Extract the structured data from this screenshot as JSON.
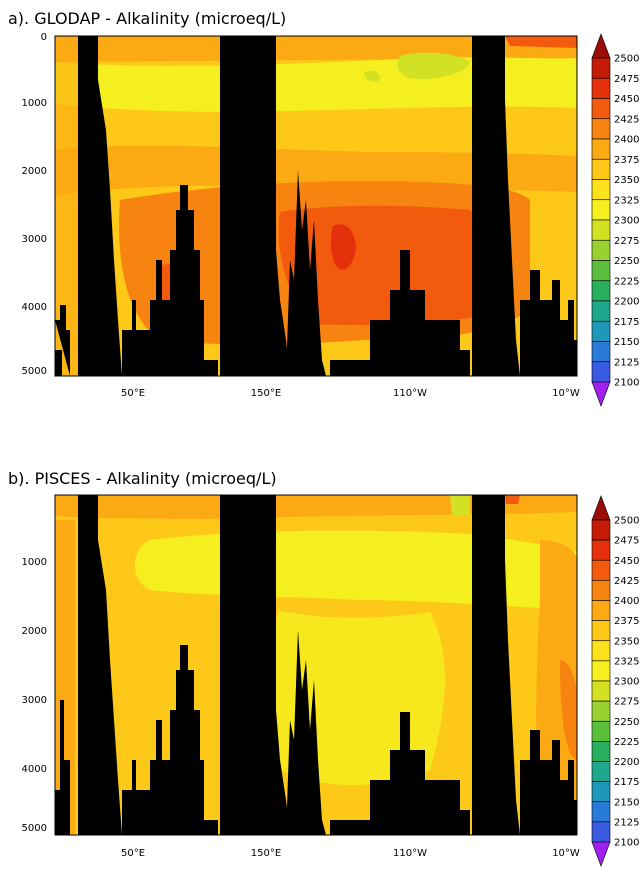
{
  "palette": [
    "#a020f0",
    "#6a3ff0",
    "#3a5be0",
    "#2a7ad8",
    "#1f97b8",
    "#1fa88e",
    "#28b05e",
    "#5bbf3c",
    "#98d130",
    "#d2e124",
    "#f5ef1f",
    "#fce21a",
    "#fdc817",
    "#fbaa14",
    "#f78411",
    "#f25a0e",
    "#e5310b",
    "#c41a08",
    "#9a0d06"
  ],
  "chart_data": [
    {
      "type": "heatmap",
      "title": "a). GLODAP - Alkalinity (microeq/L)",
      "xlabel": "",
      "ylabel": "",
      "x_ticks": [
        "50°E",
        "150°E",
        "110°W",
        "10°W"
      ],
      "y_ticks": [
        "0",
        "1000",
        "2000",
        "3000",
        "4000",
        "5000"
      ],
      "ylim": [
        5500,
        0
      ],
      "colorbar_levels": [
        2100,
        2125,
        2150,
        2175,
        2200,
        2225,
        2250,
        2275,
        2300,
        2325,
        2350,
        2375,
        2400,
        2425,
        2450,
        2475,
        2500
      ],
      "bands_by_depth": [
        {
          "depth_m": 0,
          "level": 2425
        },
        {
          "depth_m": 500,
          "level": 2375
        },
        {
          "depth_m": 1000,
          "level": 2400
        },
        {
          "depth_m": 1500,
          "level": 2425
        },
        {
          "depth_m": 2000,
          "level": 2450
        },
        {
          "depth_m": 3000,
          "level": 2450
        },
        {
          "depth_m": 4500,
          "level": 2425
        }
      ]
    },
    {
      "type": "heatmap",
      "title": "b). PISCES - Alkalinity (microeq/L)",
      "xlabel": "",
      "ylabel": "",
      "x_ticks": [
        "50°E",
        "150°E",
        "110°W",
        "10°W"
      ],
      "y_ticks": [
        "1000",
        "2000",
        "3000",
        "4000",
        "5000"
      ],
      "ylim": [
        5300,
        0
      ],
      "colorbar_levels": [
        2100,
        2125,
        2150,
        2175,
        2200,
        2225,
        2250,
        2275,
        2300,
        2325,
        2350,
        2375,
        2400,
        2425,
        2450,
        2475,
        2500
      ],
      "bands_by_depth": [
        {
          "depth_m": 0,
          "level": 2425
        },
        {
          "depth_m": 300,
          "level": 2400
        },
        {
          "depth_m": 700,
          "level": 2375
        },
        {
          "depth_m": 1500,
          "level": 2400
        },
        {
          "depth_m": 3000,
          "level": 2400
        }
      ]
    }
  ]
}
